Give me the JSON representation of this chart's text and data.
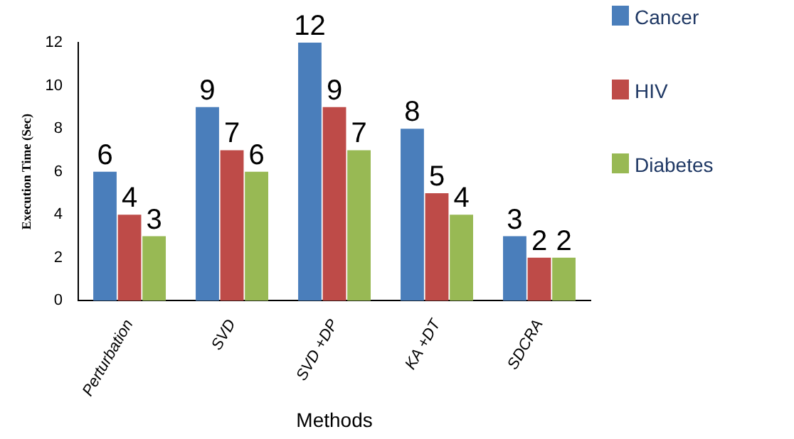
{
  "chart_data": {
    "type": "bar",
    "xlabel": "Methods",
    "ylabel": "Execution Time (Sec)",
    "categories": [
      "Perturbation",
      "SVD",
      "SVD +DP",
      "KA +DT",
      "SDCRA"
    ],
    "series": [
      {
        "name": "Cancer",
        "color": "#4a7ebb",
        "values": [
          6,
          9,
          12,
          8,
          3
        ]
      },
      {
        "name": "HIV",
        "color": "#be4b48",
        "values": [
          4,
          7,
          9,
          5,
          2
        ]
      },
      {
        "name": "Diabetes",
        "color": "#98b954",
        "values": [
          3,
          6,
          7,
          4,
          2
        ]
      }
    ],
    "ylim": [
      0,
      12
    ],
    "yticks": [
      0,
      2,
      4,
      6,
      8,
      10,
      12
    ],
    "grid": false,
    "legend": "top right",
    "data_labels": true
  }
}
